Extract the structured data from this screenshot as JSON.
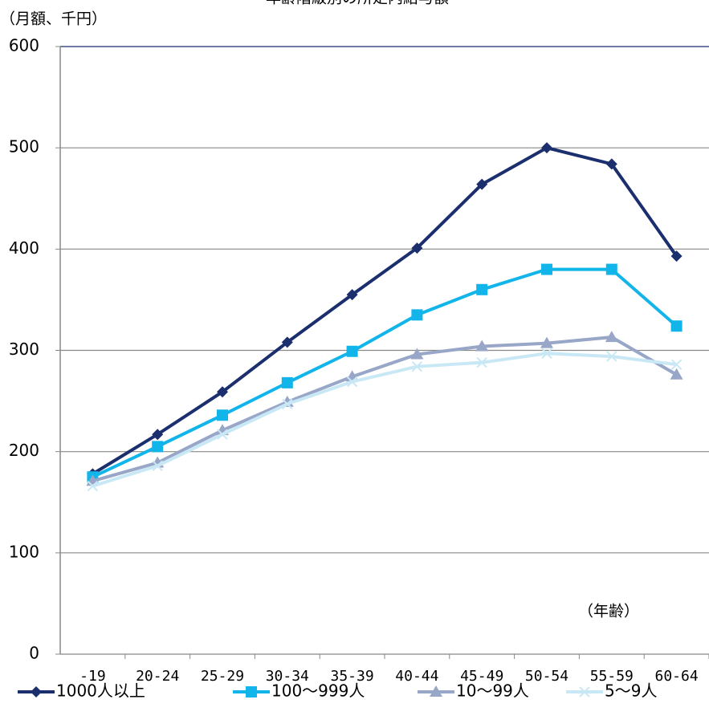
{
  "chart_data": {
    "type": "line",
    "title": "年齢階級別の所定内給与額",
    "y_label": "（月額、千円）",
    "x_label": "（年齢）",
    "categories": [
      "-19",
      "20-24",
      "25-29",
      "30-34",
      "35-39",
      "40-44",
      "45-49",
      "50-54",
      "55-59",
      "60-64"
    ],
    "series": [
      {
        "name": "1000人以上",
        "color": "#1b2e6e",
        "marker": "diamond",
        "values": [
          178,
          217,
          259,
          308,
          355,
          401,
          464,
          500,
          484,
          393
        ]
      },
      {
        "name": "100〜999人",
        "color": "#12b5ea",
        "marker": "square",
        "values": [
          175,
          205,
          236,
          268,
          299,
          335,
          360,
          380,
          380,
          324
        ]
      },
      {
        "name": "10〜99人",
        "color": "#98a6c8",
        "marker": "triangle",
        "values": [
          171,
          189,
          221,
          249,
          274,
          296,
          304,
          307,
          313,
          276
        ]
      },
      {
        "name": "5〜9人",
        "color": "#c9e8f5",
        "marker": "x",
        "values": [
          166,
          186,
          217,
          247,
          269,
          284,
          288,
          297,
          294,
          286
        ]
      }
    ],
    "ylim": [
      0,
      600
    ],
    "yticks": [
      0,
      100,
      200,
      300,
      400,
      500,
      600
    ],
    "grid": true,
    "legend": "bottom"
  }
}
